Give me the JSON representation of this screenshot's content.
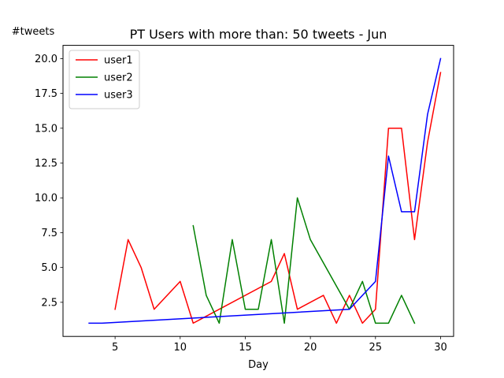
{
  "chart_data": {
    "type": "line",
    "title": "PT Users with more than: 50 tweets - Jun",
    "xlabel": "Day",
    "ylabel": "#tweets",
    "xlim": [
      1,
      31
    ],
    "ylim": [
      0.05,
      20.95
    ],
    "xticks": [
      5,
      10,
      15,
      20,
      25,
      30
    ],
    "yticks": [
      2.5,
      5.0,
      7.5,
      10.0,
      12.5,
      15.0,
      17.5,
      20.0
    ],
    "xtick_labels": [
      "5",
      "10",
      "15",
      "20",
      "25",
      "30"
    ],
    "ytick_labels": [
      "2.5",
      "5.0",
      "7.5",
      "10.0",
      "12.5",
      "15.0",
      "17.5",
      "20.0"
    ],
    "legend": "top-left",
    "grid": false,
    "series": [
      {
        "name": "user1",
        "color": "#ff0000",
        "x": [
          5,
          6,
          7,
          8,
          10,
          11,
          17,
          18,
          19,
          21,
          22,
          23,
          24,
          25,
          26,
          27,
          28,
          29,
          30
        ],
        "y": [
          2,
          7,
          5,
          2,
          4,
          1,
          4,
          6,
          2,
          3,
          1,
          3,
          1,
          2,
          15,
          15,
          7,
          14,
          19
        ]
      },
      {
        "name": "user2",
        "color": "#008000",
        "x": [
          11,
          12,
          13,
          14,
          15,
          16,
          17,
          18,
          19,
          20,
          23,
          24,
          25,
          26,
          27,
          28
        ],
        "y": [
          8,
          3,
          1,
          7,
          2,
          2,
          7,
          1,
          10,
          7,
          2,
          4,
          1,
          1,
          3,
          1
        ]
      },
      {
        "name": "user3",
        "color": "#0000ff",
        "x": [
          3,
          4,
          23,
          25,
          26,
          27,
          28,
          29,
          30
        ],
        "y": [
          1,
          1,
          2,
          4,
          13,
          9,
          9,
          16,
          20
        ]
      }
    ]
  }
}
